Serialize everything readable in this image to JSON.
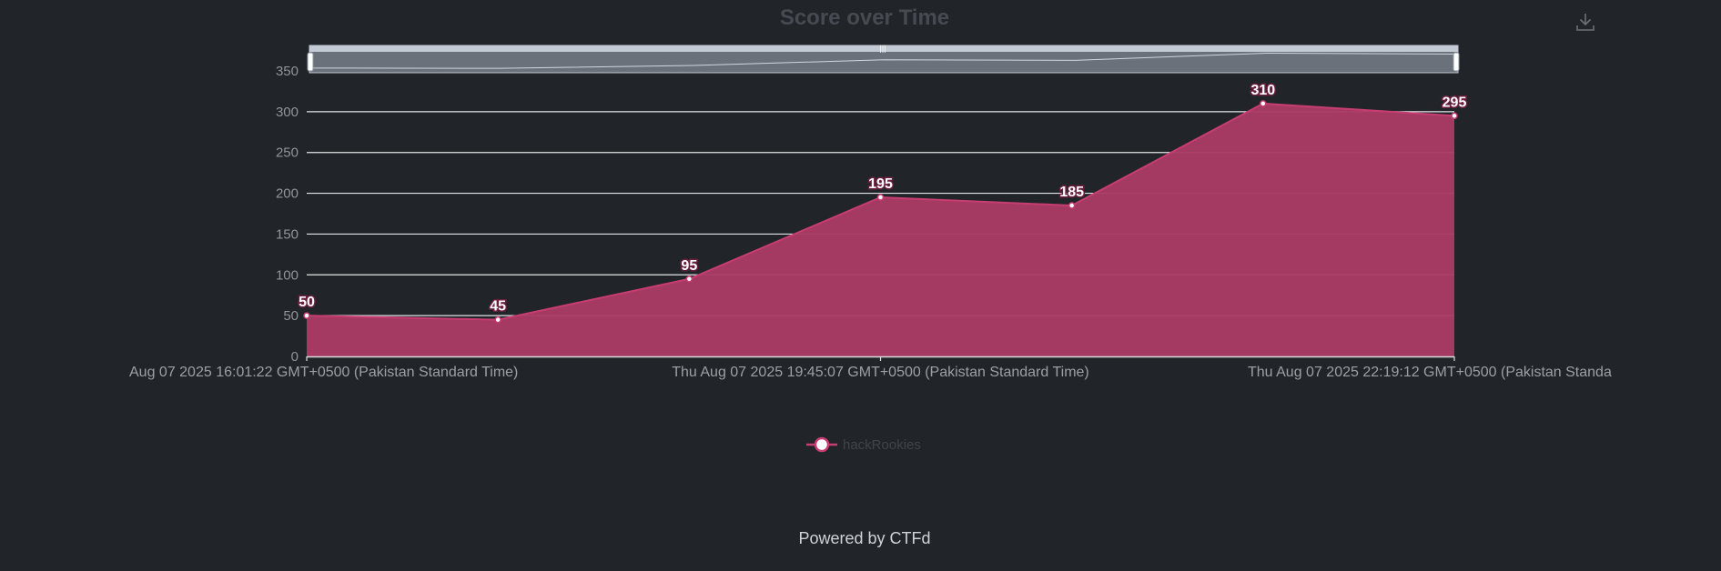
{
  "chart_data": {
    "type": "area",
    "title": "Score over Time",
    "series": [
      {
        "name": "hackRookies",
        "values": [
          50,
          45,
          95,
          195,
          185,
          310,
          295
        ]
      }
    ],
    "x_tick_labels": [
      "Aug 07 2025 16:01:22 GMT+0500 (Pakistan Standard Time)",
      "Thu Aug 07 2025 19:45:07 GMT+0500 (Pakistan Standard Time)",
      "Thu Aug 07 2025 22:19:12 GMT+0500 (Pakistan Standa"
    ],
    "y_ticks": [
      0,
      50,
      100,
      150,
      200,
      250,
      300,
      350
    ],
    "ylim": [
      0,
      350
    ],
    "grid": true,
    "legend_position": "bottom-center",
    "colors": {
      "series": "#c73d72",
      "fill": "#aa3b64",
      "background": "#212529"
    }
  },
  "footer": {
    "text": "Powered by CTFd"
  },
  "toolbox": {
    "icon": "download-icon"
  }
}
